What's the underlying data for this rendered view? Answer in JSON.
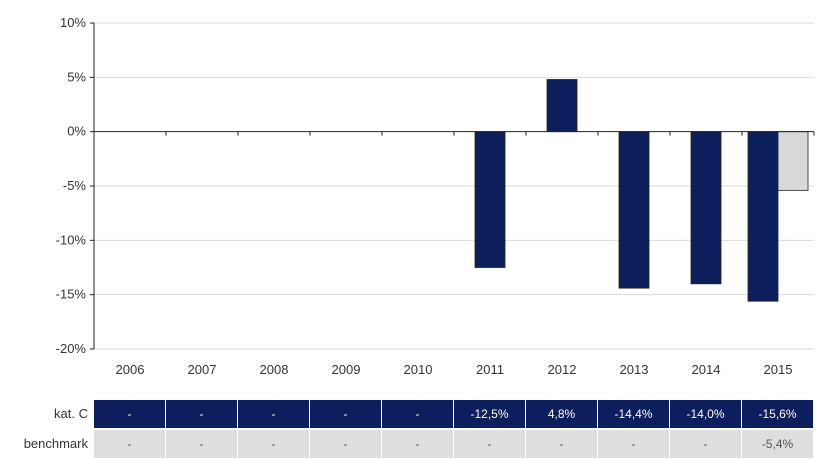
{
  "chart_data": {
    "type": "bar",
    "categories": [
      "2006",
      "2007",
      "2008",
      "2009",
      "2010",
      "2011",
      "2012",
      "2013",
      "2014",
      "2015"
    ],
    "series": [
      {
        "name": "kat. C",
        "values": [
          null,
          null,
          null,
          null,
          null,
          -12.5,
          4.8,
          -14.4,
          -14.0,
          -15.6
        ],
        "color": "#0d1e5c"
      },
      {
        "name": "benchmark",
        "values": [
          null,
          null,
          null,
          null,
          null,
          null,
          null,
          null,
          null,
          -5.4
        ],
        "color": "#d9d9d9"
      }
    ],
    "ylim": [
      -20,
      10
    ],
    "yticks": [
      10,
      5,
      0,
      -5,
      -10,
      -15,
      -20
    ],
    "ytick_labels": [
      "10%",
      "5%",
      "0%",
      "-5%",
      "-10%",
      "-15%",
      "-20%"
    ],
    "grid": true
  },
  "table": {
    "rows": [
      {
        "label": "kat. C",
        "cells": [
          "-",
          "-",
          "-",
          "-",
          "-",
          "-12,5%",
          "4,8%",
          "-14,4%",
          "-14,0%",
          "-15,6%"
        ]
      },
      {
        "label": "benchmark",
        "cells": [
          "-",
          "-",
          "-",
          "-",
          "-",
          "-",
          "-",
          "-",
          "-",
          "-5,4%"
        ]
      }
    ]
  }
}
